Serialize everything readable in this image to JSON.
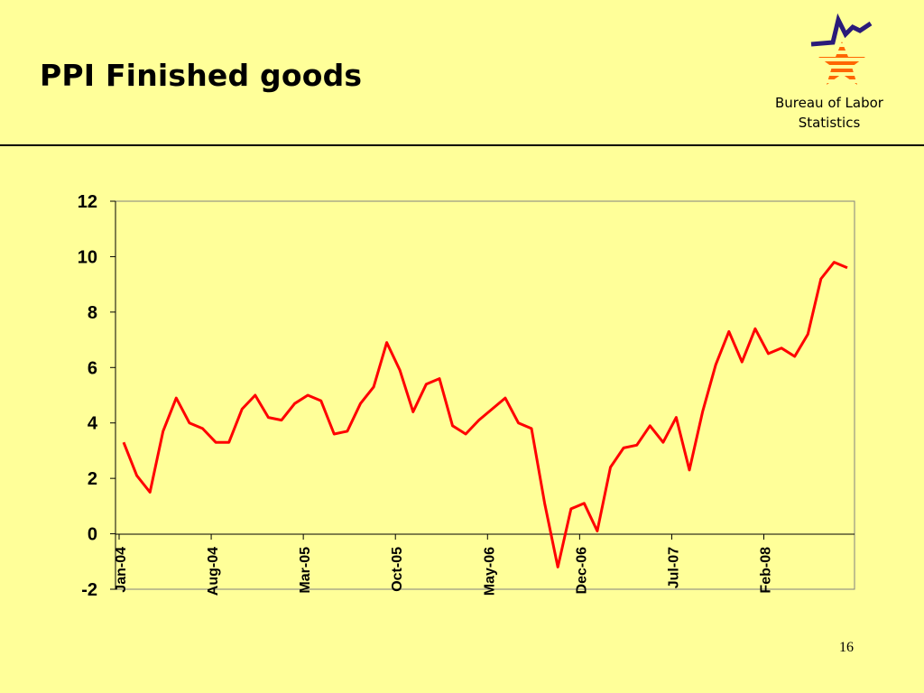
{
  "slide": {
    "title": "PPI Finished goods",
    "organization": "Bureau of Labor Statistics",
    "page_number": "16"
  },
  "colors": {
    "background": "#ffff99",
    "series_line": "#ff0000",
    "logo_star_stripes": "#ff6600",
    "logo_chart_line": "#2a1a7a",
    "axis": "#000000"
  },
  "icons": {
    "logo": "bls-star-logo-icon"
  },
  "chart_data": {
    "type": "line",
    "title": "",
    "xlabel": "",
    "ylabel": "",
    "ylim": [
      -2,
      12
    ],
    "y_ticks": [
      "12",
      "10",
      "8",
      "6",
      "4",
      "2",
      "0",
      "-2"
    ],
    "y_tick_values": [
      12,
      10,
      8,
      6,
      4,
      2,
      0,
      -2
    ],
    "x_tick_labels": [
      "Jan-04",
      "Aug-04",
      "Mar-05",
      "Oct-05",
      "May-06",
      "Dec-06",
      "Jul-07",
      "Feb-08"
    ],
    "x_tick_indices": [
      0,
      7,
      14,
      21,
      28,
      35,
      42,
      49
    ],
    "grid": false,
    "legend": "none",
    "series": [
      {
        "values": [
          3.3,
          2.1,
          1.5,
          3.7,
          4.9,
          4.0,
          3.8,
          3.3,
          3.3,
          4.5,
          5.0,
          4.2,
          4.1,
          4.7,
          5.0,
          4.8,
          3.6,
          3.7,
          4.7,
          5.3,
          6.9,
          5.9,
          4.4,
          5.4,
          5.6,
          3.9,
          3.6,
          4.1,
          4.5,
          4.9,
          4.0,
          3.8,
          1.1,
          -1.2,
          0.9,
          1.1,
          0.1,
          2.4,
          3.1,
          3.2,
          3.9,
          3.3,
          4.2,
          2.3,
          4.4,
          6.1,
          7.3,
          6.2,
          7.4,
          6.5,
          6.7,
          6.4,
          7.2,
          9.2,
          9.8,
          9.6
        ]
      }
    ]
  }
}
